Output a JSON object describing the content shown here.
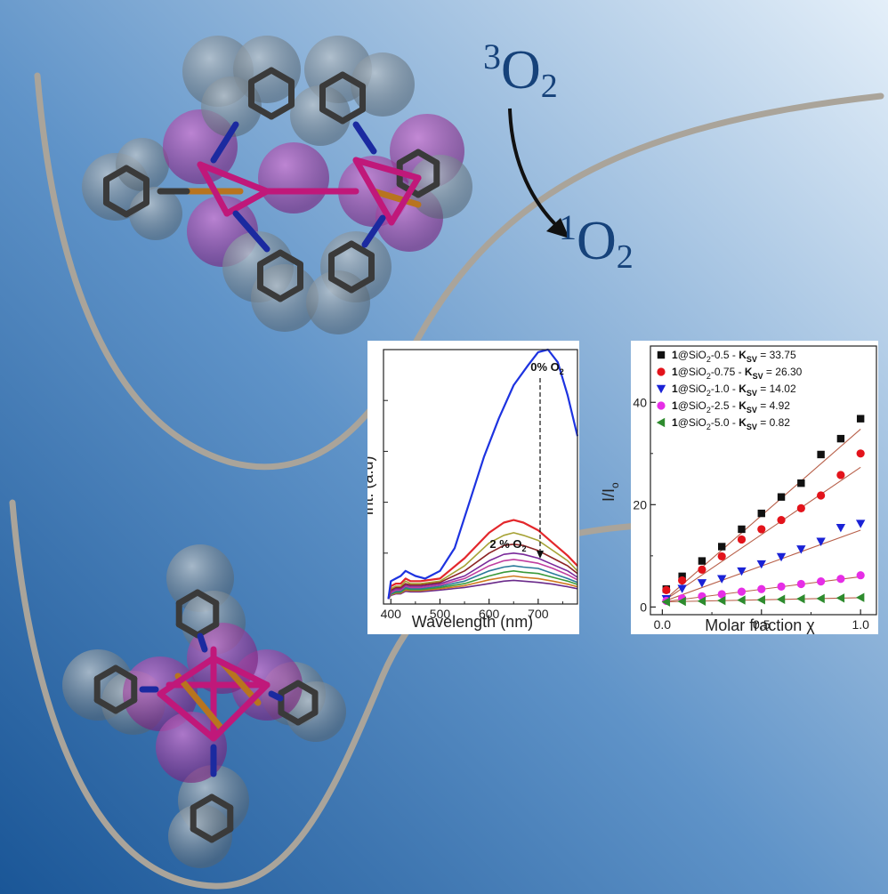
{
  "colors": {
    "bg_light": "#d6e6f4",
    "bg_mid": "#7ea9d3",
    "bg_dark": "#1e5a9b",
    "curve": "#a9a49c",
    "reaction_text": "#16427a",
    "carbon": "#3a3a3a",
    "phosphorus": "#b8741f",
    "metal": "#c0187a",
    "nitrogen": "#1b2aa0",
    "spectrum_0pct": "#1d33e0",
    "spectrum_2pct": "#e3272b"
  },
  "reaction": {
    "reactant_sup": "3",
    "reactant_base": "O",
    "reactant_sub": "2",
    "product_sup": "1",
    "product_base": "O",
    "product_sub": "2"
  },
  "chart_data": [
    {
      "type": "line",
      "xlabel": "Wavelength (nm)",
      "ylabel": "Int. (a.u)",
      "xlim": [
        385,
        780
      ],
      "ylim": [
        0,
        1.0
      ],
      "x_ticks": [
        400,
        500,
        600,
        700
      ],
      "x_tick_labels": [
        "400",
        "500",
        "600",
        "700"
      ],
      "grid": false,
      "annotations": [
        {
          "text": "0% O",
          "sub": "2"
        },
        {
          "text": "2 % O",
          "sub": "2"
        }
      ],
      "series": [
        {
          "name": "0% O2",
          "color": "#1d33e0",
          "x": [
            395,
            400,
            410,
            420,
            430,
            440,
            450,
            470,
            500,
            530,
            560,
            590,
            620,
            650,
            680,
            700,
            720,
            740,
            760,
            780
          ],
          "y": [
            0.02,
            0.09,
            0.1,
            0.11,
            0.13,
            0.12,
            0.11,
            0.1,
            0.13,
            0.22,
            0.4,
            0.58,
            0.73,
            0.86,
            0.94,
            0.99,
            1.0,
            0.95,
            0.82,
            0.66
          ]
        },
        {
          "name": "2 % O2",
          "color": "#e3272b",
          "x": [
            395,
            400,
            410,
            420,
            430,
            440,
            460,
            500,
            550,
            600,
            630,
            650,
            670,
            700,
            730,
            760,
            780
          ],
          "y": [
            0.02,
            0.07,
            0.08,
            0.08,
            0.1,
            0.09,
            0.09,
            0.1,
            0.18,
            0.28,
            0.32,
            0.33,
            0.32,
            0.29,
            0.24,
            0.19,
            0.15
          ]
        },
        {
          "color": "#a6a235",
          "x": [
            395,
            400,
            410,
            420,
            430,
            440,
            460,
            500,
            550,
            600,
            630,
            650,
            670,
            700,
            730,
            760,
            780
          ],
          "y": [
            0.02,
            0.06,
            0.07,
            0.07,
            0.09,
            0.08,
            0.08,
            0.09,
            0.15,
            0.24,
            0.27,
            0.28,
            0.27,
            0.25,
            0.21,
            0.17,
            0.13
          ]
        },
        {
          "color": "#8c2424",
          "x": [
            395,
            400,
            410,
            420,
            430,
            440,
            460,
            500,
            550,
            600,
            630,
            650,
            670,
            700,
            730,
            760,
            780
          ],
          "y": [
            0.02,
            0.055,
            0.065,
            0.065,
            0.08,
            0.075,
            0.075,
            0.085,
            0.13,
            0.2,
            0.23,
            0.235,
            0.23,
            0.21,
            0.18,
            0.15,
            0.12
          ]
        },
        {
          "color": "#7a2a9a",
          "x": [
            395,
            400,
            410,
            420,
            430,
            440,
            460,
            500,
            550,
            600,
            630,
            650,
            670,
            700,
            730,
            760,
            780
          ],
          "y": [
            0.02,
            0.05,
            0.06,
            0.06,
            0.075,
            0.07,
            0.07,
            0.08,
            0.11,
            0.17,
            0.195,
            0.2,
            0.195,
            0.18,
            0.155,
            0.13,
            0.105
          ]
        },
        {
          "color": "#c03ea0",
          "x": [
            395,
            400,
            410,
            420,
            430,
            440,
            460,
            500,
            550,
            600,
            630,
            650,
            670,
            700,
            730,
            760,
            780
          ],
          "y": [
            0.02,
            0.045,
            0.055,
            0.055,
            0.07,
            0.065,
            0.065,
            0.075,
            0.1,
            0.15,
            0.17,
            0.175,
            0.17,
            0.16,
            0.14,
            0.115,
            0.095
          ]
        },
        {
          "color": "#2a7a9a",
          "x": [
            395,
            400,
            410,
            420,
            430,
            440,
            460,
            500,
            550,
            600,
            630,
            650,
            670,
            700,
            730,
            760,
            780
          ],
          "y": [
            0.02,
            0.04,
            0.05,
            0.05,
            0.065,
            0.06,
            0.06,
            0.07,
            0.09,
            0.13,
            0.145,
            0.15,
            0.145,
            0.14,
            0.12,
            0.1,
            0.085
          ]
        },
        {
          "color": "#3a9a3a",
          "x": [
            395,
            400,
            410,
            420,
            430,
            440,
            460,
            500,
            550,
            600,
            630,
            650,
            670,
            700,
            730,
            760,
            780
          ],
          "y": [
            0.02,
            0.038,
            0.046,
            0.046,
            0.06,
            0.056,
            0.056,
            0.065,
            0.08,
            0.11,
            0.125,
            0.13,
            0.125,
            0.12,
            0.105,
            0.09,
            0.077
          ]
        },
        {
          "color": "#d07a20",
          "x": [
            395,
            400,
            410,
            420,
            430,
            440,
            460,
            500,
            550,
            600,
            630,
            650,
            670,
            700,
            730,
            760,
            780
          ],
          "y": [
            0.02,
            0.036,
            0.043,
            0.043,
            0.055,
            0.052,
            0.052,
            0.06,
            0.072,
            0.095,
            0.105,
            0.11,
            0.105,
            0.1,
            0.09,
            0.078,
            0.068
          ]
        },
        {
          "color": "#6a2a8a",
          "x": [
            395,
            400,
            410,
            420,
            430,
            440,
            460,
            500,
            550,
            600,
            630,
            650,
            670,
            700,
            730,
            760,
            780
          ],
          "y": [
            0.02,
            0.034,
            0.04,
            0.04,
            0.05,
            0.048,
            0.048,
            0.055,
            0.065,
            0.08,
            0.09,
            0.093,
            0.09,
            0.085,
            0.078,
            0.068,
            0.06
          ]
        }
      ]
    },
    {
      "type": "scatter",
      "xlabel": "Molar fraction χ",
      "ylabel": "I/I",
      "ylabel_sub": "o",
      "xlim": [
        -0.06,
        1.08
      ],
      "ylim": [
        -1.5,
        51
      ],
      "x_ticks": [
        0.0,
        0.5,
        1.0
      ],
      "x_tick_labels": [
        "0.0",
        "0.5",
        "1.0"
      ],
      "y_ticks": [
        0,
        20,
        40
      ],
      "y_tick_labels": [
        "0",
        "20",
        "40"
      ],
      "grid": false,
      "legend_position": "top-left",
      "x": [
        0.02,
        0.1,
        0.2,
        0.3,
        0.4,
        0.5,
        0.6,
        0.7,
        0.8,
        0.9,
        1.0
      ],
      "series": [
        {
          "label_prefix": "1@SiO",
          "label_sub": "2",
          "label_mid": "-0.5 - ",
          "label_k": "K",
          "label_k_sub": "SV",
          "label_value": " = 33.75",
          "marker": "square",
          "color": "#111111",
          "y": [
            3.5,
            6.0,
            9.0,
            11.8,
            15.2,
            18.3,
            21.5,
            24.2,
            29.8,
            32.9,
            36.8
          ],
          "fit": [
            1.0,
            34.75
          ]
        },
        {
          "label_prefix": "1@SiO",
          "label_sub": "2",
          "label_mid": "-0.75 - ",
          "label_k": "K",
          "label_k_sub": "SV",
          "label_value": " = 26.30",
          "marker": "circle",
          "color": "#e3131b",
          "y": [
            3.3,
            5.2,
            7.3,
            9.9,
            13.2,
            15.2,
            17.0,
            19.3,
            21.8,
            25.8,
            30.0
          ],
          "fit": [
            1.0,
            27.3
          ]
        },
        {
          "label_prefix": "1@SiO",
          "label_sub": "2",
          "label_mid": "-1.0 - ",
          "label_k": "K",
          "label_k_sub": "SV",
          "label_value": " = 14.02",
          "marker": "triangle-down",
          "color": "#1a22d6",
          "y": [
            1.6,
            3.6,
            4.7,
            5.5,
            7.0,
            8.4,
            9.8,
            11.3,
            12.8,
            15.5,
            16.3
          ],
          "fit": [
            1.0,
            15.02
          ]
        },
        {
          "label_prefix": "1@SiO",
          "label_sub": "2",
          "label_mid": "-2.5 - ",
          "label_k": "K",
          "label_k_sub": "SV",
          "label_value": " = 4.92",
          "marker": "circle",
          "color": "#e62ee6",
          "y": [
            1.2,
            1.7,
            2.1,
            2.5,
            3.0,
            3.5,
            4.0,
            4.5,
            5.0,
            5.5,
            6.2
          ],
          "fit": [
            1.0,
            5.92
          ]
        },
        {
          "label_prefix": "1@SiO",
          "label_sub": "2",
          "label_mid": "-5.0 - ",
          "label_k": "K",
          "label_k_sub": "SV",
          "label_value": " = 0.82",
          "marker": "triangle-left",
          "color": "#2e8b2e",
          "y": [
            1.0,
            1.1,
            1.15,
            1.25,
            1.35,
            1.4,
            1.5,
            1.6,
            1.65,
            1.75,
            1.85
          ],
          "fit": [
            1.0,
            1.82
          ]
        }
      ]
    }
  ]
}
